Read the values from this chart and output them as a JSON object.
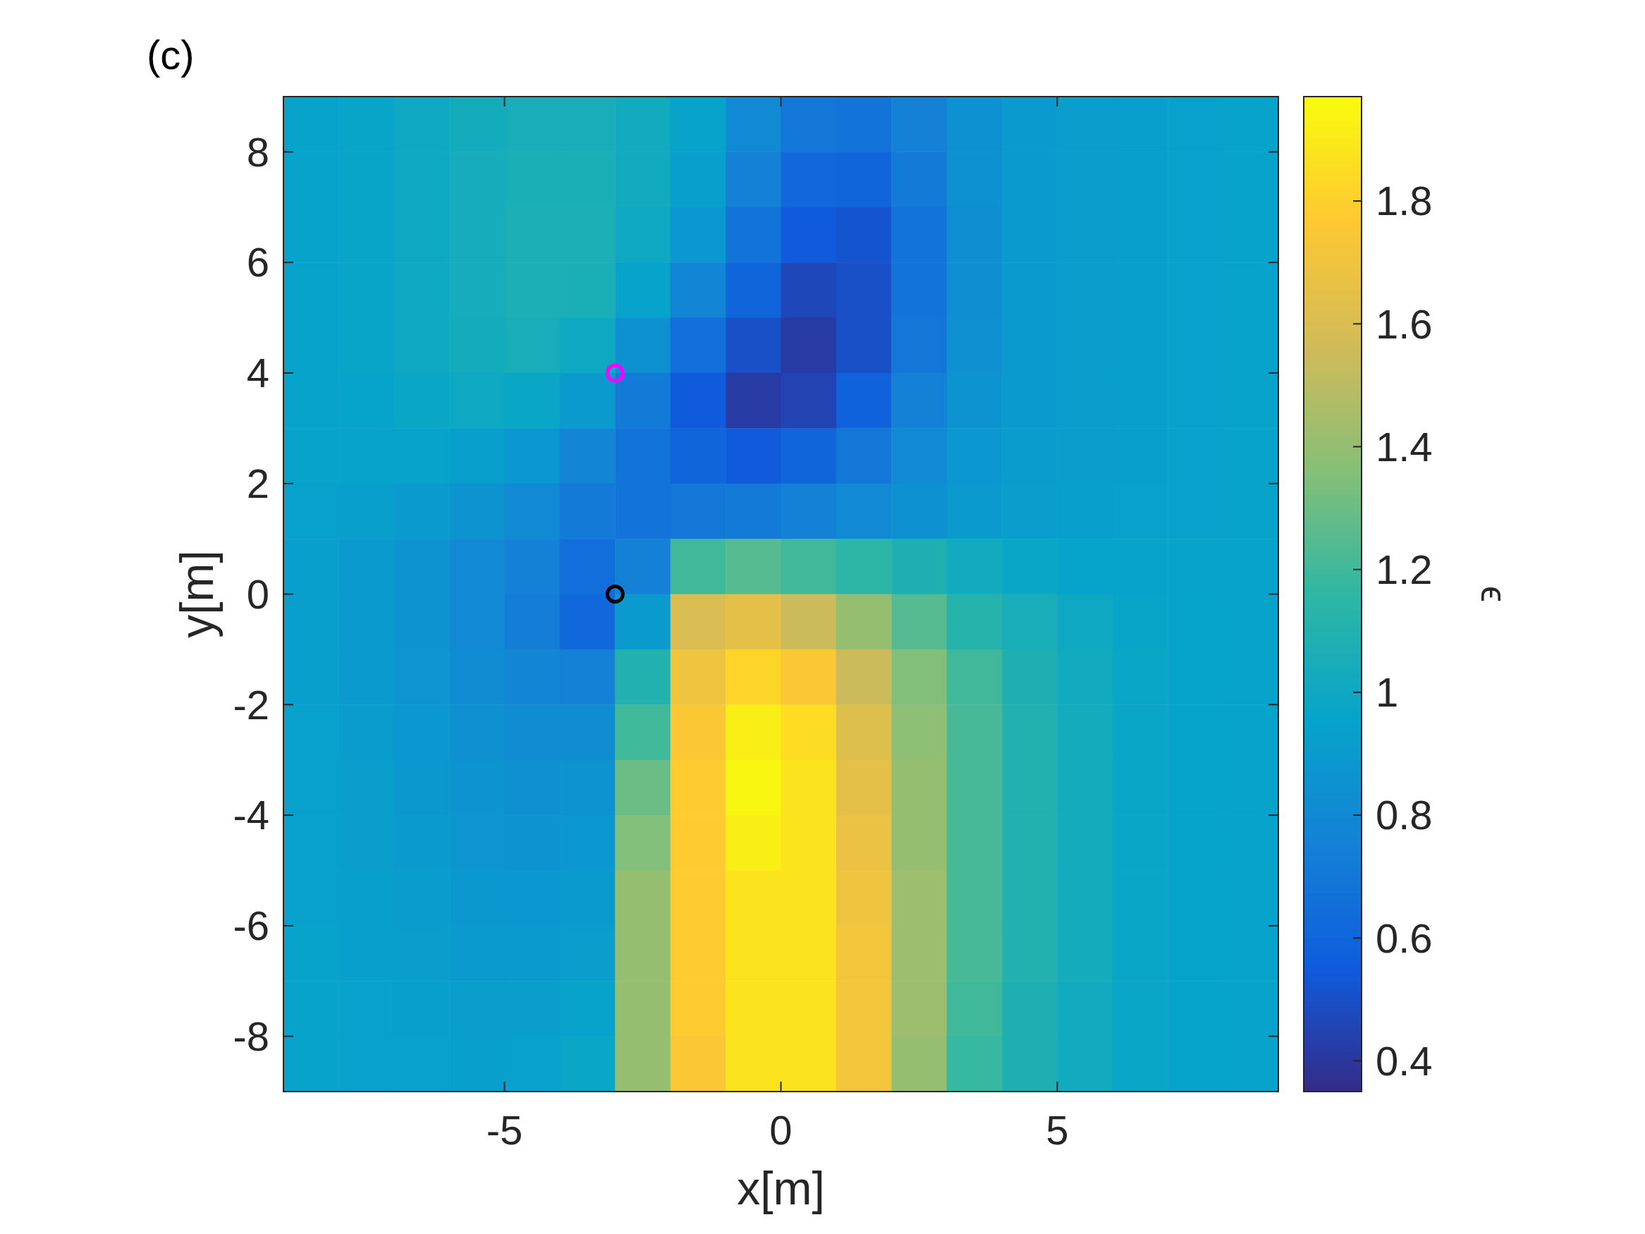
{
  "chart_data": {
    "type": "heatmap",
    "xlabel": "x[m]",
    "ylabel": "y[m]",
    "clabel": "ϵ",
    "annotations": [
      "(c)"
    ],
    "xlim": [
      -9,
      9
    ],
    "xticks": [
      -5,
      0,
      5
    ],
    "ylim": [
      -9,
      9
    ],
    "yticks": [
      -8,
      -6,
      -4,
      -2,
      0,
      2,
      4,
      6,
      8
    ],
    "clim": [
      0.35,
      1.97
    ],
    "cticks": [
      0.4,
      0.6,
      0.8,
      1,
      1.2,
      1.4,
      1.6,
      1.8
    ],
    "grid": false,
    "marker": "circle",
    "cells": [
      [
        0.95,
        0.97,
        1.0,
        1.03,
        1.05,
        1.05,
        1.02,
        0.95,
        0.8,
        0.7,
        0.68,
        0.75,
        0.85,
        0.9,
        0.92,
        0.93,
        0.94,
        0.95
      ],
      [
        0.95,
        0.97,
        1.0,
        1.04,
        1.06,
        1.06,
        1.02,
        0.93,
        0.75,
        0.62,
        0.6,
        0.72,
        0.85,
        0.9,
        0.92,
        0.93,
        0.94,
        0.95
      ],
      [
        0.95,
        0.97,
        1.0,
        1.04,
        1.07,
        1.07,
        1.0,
        0.88,
        0.68,
        0.55,
        0.52,
        0.68,
        0.83,
        0.9,
        0.92,
        0.93,
        0.94,
        0.95
      ],
      [
        0.95,
        0.97,
        1.0,
        1.04,
        1.07,
        1.06,
        0.95,
        0.78,
        0.6,
        0.47,
        0.5,
        0.68,
        0.83,
        0.9,
        0.92,
        0.93,
        0.94,
        0.95
      ],
      [
        0.95,
        0.97,
        1.0,
        1.03,
        1.05,
        1.0,
        0.85,
        0.65,
        0.5,
        0.42,
        0.5,
        0.7,
        0.84,
        0.9,
        0.92,
        0.93,
        0.94,
        0.95
      ],
      [
        0.95,
        0.96,
        0.98,
        1.0,
        0.98,
        0.9,
        0.72,
        0.55,
        0.42,
        0.45,
        0.58,
        0.75,
        0.86,
        0.9,
        0.92,
        0.93,
        0.94,
        0.95
      ],
      [
        0.95,
        0.95,
        0.95,
        0.93,
        0.88,
        0.78,
        0.68,
        0.6,
        0.55,
        0.6,
        0.7,
        0.8,
        0.88,
        0.91,
        0.92,
        0.93,
        0.94,
        0.95
      ],
      [
        0.94,
        0.93,
        0.9,
        0.86,
        0.8,
        0.72,
        0.68,
        0.7,
        0.72,
        0.75,
        0.8,
        0.85,
        0.9,
        0.92,
        0.93,
        0.94,
        0.94,
        0.95
      ],
      [
        0.93,
        0.9,
        0.86,
        0.8,
        0.75,
        0.65,
        0.75,
        1.2,
        1.25,
        1.2,
        1.15,
        1.08,
        1.02,
        0.98,
        0.96,
        0.95,
        0.95,
        0.95
      ],
      [
        0.93,
        0.9,
        0.86,
        0.8,
        0.74,
        0.62,
        0.9,
        1.6,
        1.65,
        1.55,
        1.4,
        1.25,
        1.12,
        1.05,
        1.0,
        0.97,
        0.96,
        0.95
      ],
      [
        0.93,
        0.9,
        0.87,
        0.82,
        0.78,
        0.75,
        1.1,
        1.7,
        1.82,
        1.75,
        1.55,
        1.35,
        1.2,
        1.08,
        1.02,
        0.98,
        0.96,
        0.95
      ],
      [
        0.94,
        0.91,
        0.88,
        0.84,
        0.82,
        0.82,
        1.2,
        1.75,
        1.92,
        1.85,
        1.62,
        1.38,
        1.22,
        1.1,
        1.03,
        0.98,
        0.96,
        0.95
      ],
      [
        0.94,
        0.92,
        0.89,
        0.86,
        0.84,
        0.86,
        1.3,
        1.78,
        1.95,
        1.88,
        1.65,
        1.4,
        1.22,
        1.1,
        1.03,
        0.98,
        0.96,
        0.95
      ],
      [
        0.94,
        0.92,
        0.9,
        0.87,
        0.86,
        0.88,
        1.35,
        1.78,
        1.92,
        1.88,
        1.68,
        1.4,
        1.22,
        1.1,
        1.03,
        0.98,
        0.96,
        0.95
      ],
      [
        0.94,
        0.93,
        0.91,
        0.89,
        0.88,
        0.9,
        1.4,
        1.78,
        1.88,
        1.88,
        1.7,
        1.42,
        1.22,
        1.1,
        1.03,
        0.98,
        0.96,
        0.95
      ],
      [
        0.95,
        0.93,
        0.92,
        0.9,
        0.9,
        0.92,
        1.4,
        1.78,
        1.88,
        1.88,
        1.72,
        1.42,
        1.22,
        1.1,
        1.03,
        0.98,
        0.96,
        0.95
      ],
      [
        0.95,
        0.94,
        0.93,
        0.92,
        0.92,
        0.95,
        1.4,
        1.78,
        1.88,
        1.88,
        1.72,
        1.42,
        1.2,
        1.08,
        1.02,
        0.98,
        0.96,
        0.95
      ],
      [
        0.95,
        0.94,
        0.94,
        0.93,
        0.94,
        0.98,
        1.4,
        1.75,
        1.88,
        1.88,
        1.72,
        1.4,
        1.18,
        1.08,
        1.02,
        0.98,
        0.96,
        0.95
      ]
    ],
    "series": [
      {
        "type": "scatter",
        "x": [
          -3
        ],
        "values": [
          4
        ],
        "color": "#ff00ff"
      },
      {
        "type": "scatter",
        "x": [
          -3
        ],
        "values": [
          0
        ],
        "color": "#000000"
      }
    ]
  }
}
